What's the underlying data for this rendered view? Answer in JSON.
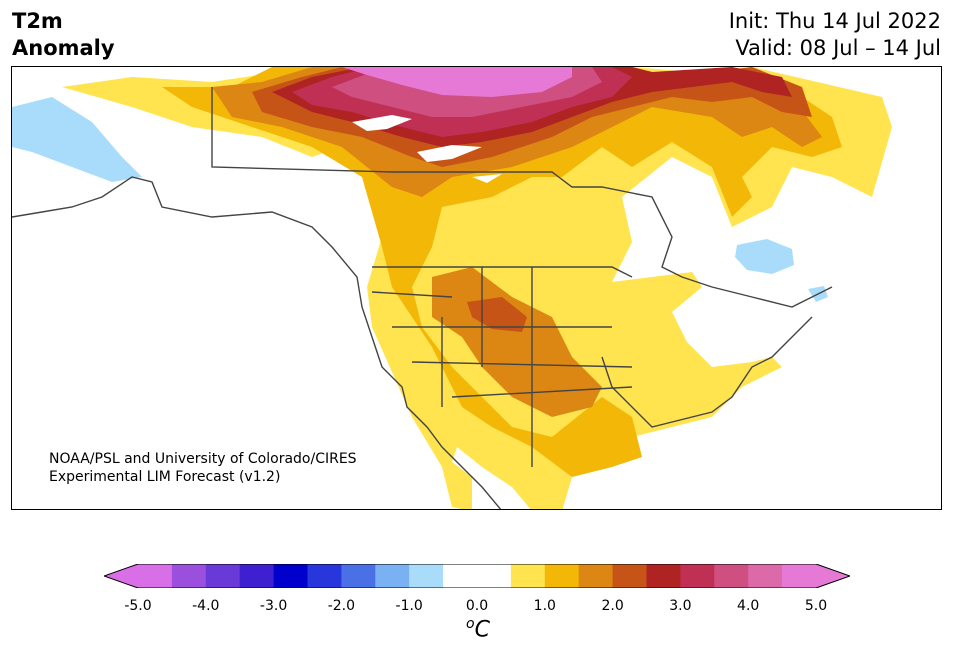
{
  "header": {
    "title_line1": "T2m",
    "title_line2": "Anomaly",
    "init": "Init: Thu 14 Jul 2022",
    "valid": "Valid: 08 Jul – 14 Jul"
  },
  "map": {
    "region": "North America",
    "credit_line1": "NOAA/PSL and University of Colorado/CIRES",
    "credit_line2": "Experimental LIM Forecast (v1.2)"
  },
  "colorbar": {
    "unit_base": "C",
    "unit_sup": "o",
    "ticks": [
      "-5.0",
      "-4.0",
      "-3.0",
      "-2.0",
      "-1.0",
      "0.0",
      "1.0",
      "2.0",
      "3.0",
      "4.0",
      "5.0"
    ],
    "colors": [
      "#d86fe6",
      "#9a4fdd",
      "#6a3ad8",
      "#3e20d1",
      "#0000cc",
      "#2737dc",
      "#4a70e6",
      "#79b1f2",
      "#a9dcfb",
      "#ffffff",
      "#ffffff",
      "#ffe34f",
      "#f2b707",
      "#dc8613",
      "#c65417",
      "#b02323",
      "#bf3054",
      "#cf4f80",
      "#dc6aa8",
      "#e679d6"
    ],
    "low_extend_color": "#d86fe6",
    "high_extend_color": "#e679d6"
  }
}
